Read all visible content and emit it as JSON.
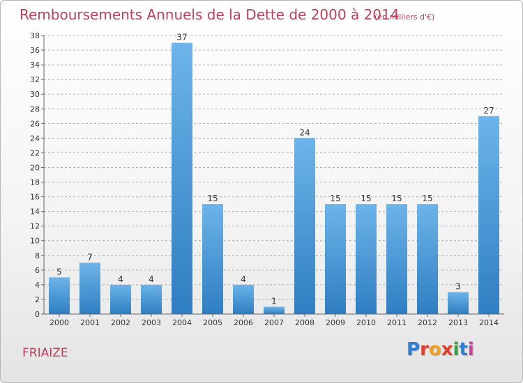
{
  "header": {
    "title": "Remboursements Annuels de la Dette de 2000 à 2014",
    "unit": "(en milliers d'€)"
  },
  "footer": {
    "commune": "FRIAIZE",
    "logo": [
      "P",
      "r",
      "o",
      "x",
      "i",
      "t",
      "i"
    ],
    "logo_colors": [
      "#2f7fd0",
      "#e04030",
      "#f0a020",
      "#e04030",
      "#3aa040",
      "#2f7fd0",
      "#d040a0"
    ]
  },
  "colors": {
    "bar_top": "#6cb4ea",
    "bar_bottom": "#2f7ec1",
    "grid": "#b0b0b0",
    "axis": "#666666"
  },
  "chart_data": {
    "type": "bar",
    "title": "Remboursements Annuels de la Dette de 2000 à 2014",
    "xlabel": "",
    "ylabel": "",
    "categories": [
      "2000",
      "2001",
      "2002",
      "2003",
      "2004",
      "2005",
      "2006",
      "2007",
      "2008",
      "2009",
      "2010",
      "2011",
      "2012",
      "2013",
      "2014"
    ],
    "values": [
      5,
      7,
      4,
      4,
      37,
      15,
      4,
      1,
      24,
      15,
      15,
      15,
      15,
      3,
      27
    ],
    "ylim": [
      0,
      38
    ],
    "yticks": [
      0,
      2,
      4,
      6,
      8,
      10,
      12,
      14,
      16,
      18,
      20,
      22,
      24,
      26,
      28,
      30,
      32,
      34,
      36,
      38
    ],
    "grid": true,
    "data_labels": true
  }
}
